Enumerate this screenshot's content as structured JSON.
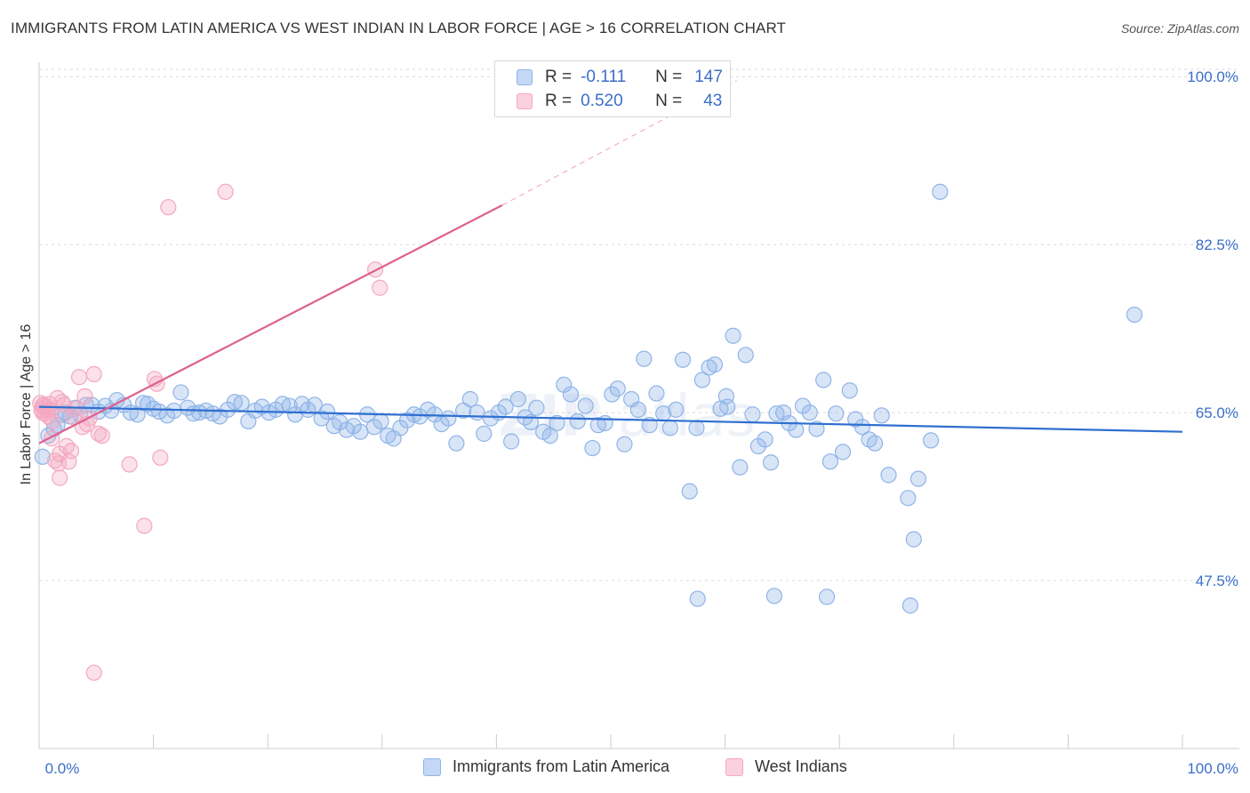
{
  "title": "IMMIGRANTS FROM LATIN AMERICA VS WEST INDIAN IN LABOR FORCE | AGE > 16 CORRELATION CHART",
  "source": "Source: ZipAtlas.com",
  "colors": {
    "blue": "#8fb4e8",
    "blue_line": "#2f6fd0",
    "pink": "#f4a8c0",
    "pink_line": "#e06090",
    "label": "#3b6fc8"
  },
  "legend": {
    "rows": [
      {
        "r_label": "R =",
        "r_value": "-0.111",
        "n_label": "N =",
        "n_value": "147"
      },
      {
        "r_label": "R =",
        "r_value": "0.520",
        "n_label": "N =",
        "n_value": "43"
      }
    ]
  },
  "bottom_legend": [
    {
      "label": "Immigrants from Latin America"
    },
    {
      "label": "West Indians"
    }
  ],
  "chart_data": {
    "type": "scatter",
    "xlabel": "",
    "ylabel": "In Labor Force | Age > 16",
    "xlim": [
      0,
      100
    ],
    "ylim": [
      30,
      101.5
    ],
    "x_tick_labels": [
      "0.0%",
      "100.0%"
    ],
    "y_ticks": [
      47.5,
      65.0,
      82.5,
      100.0
    ],
    "y_tick_labels": [
      "47.5%",
      "65.0%",
      "82.5%",
      "100.0%"
    ],
    "grid": true,
    "legend_position": "top-center",
    "series": [
      {
        "name": "Immigrants from Latin America",
        "color": "#8fb4e8",
        "r": -0.111,
        "n": 147,
        "trend": {
          "x0": 0,
          "y0": 65.6,
          "x1": 100,
          "y1": 63.0
        },
        "points": [
          [
            0.3,
            60.4
          ],
          [
            0.8,
            62.6
          ],
          [
            1.3,
            63.3
          ],
          [
            1.6,
            63.7
          ],
          [
            2.0,
            64.8
          ],
          [
            2.3,
            65.0
          ],
          [
            2.7,
            64.6
          ],
          [
            3.2,
            65.5
          ],
          [
            3.6,
            64.8
          ],
          [
            4.1,
            65.8
          ],
          [
            4.6,
            65.8
          ],
          [
            5.2,
            65.1
          ],
          [
            5.8,
            65.7
          ],
          [
            6.3,
            65.2
          ],
          [
            6.8,
            66.3
          ],
          [
            7.4,
            65.8
          ],
          [
            8.0,
            65.0
          ],
          [
            8.6,
            64.8
          ],
          [
            9.1,
            66.0
          ],
          [
            9.5,
            65.9
          ],
          [
            10.0,
            65.4
          ],
          [
            10.5,
            65.1
          ],
          [
            11.2,
            64.7
          ],
          [
            11.8,
            65.2
          ],
          [
            12.4,
            67.1
          ],
          [
            13.0,
            65.5
          ],
          [
            13.5,
            64.9
          ],
          [
            14.0,
            65.0
          ],
          [
            14.6,
            65.2
          ],
          [
            15.2,
            64.9
          ],
          [
            15.8,
            64.6
          ],
          [
            16.5,
            65.3
          ],
          [
            17.1,
            66.1
          ],
          [
            17.7,
            66.0
          ],
          [
            18.3,
            64.1
          ],
          [
            18.9,
            65.2
          ],
          [
            19.5,
            65.6
          ],
          [
            20.1,
            65.0
          ],
          [
            20.7,
            65.3
          ],
          [
            21.3,
            65.9
          ],
          [
            21.9,
            65.7
          ],
          [
            22.4,
            64.8
          ],
          [
            23.0,
            65.9
          ],
          [
            23.5,
            65.3
          ],
          [
            24.1,
            65.8
          ],
          [
            24.7,
            64.4
          ],
          [
            25.2,
            65.1
          ],
          [
            25.8,
            63.6
          ],
          [
            26.3,
            64.0
          ],
          [
            26.9,
            63.2
          ],
          [
            27.5,
            63.6
          ],
          [
            28.1,
            63.0
          ],
          [
            28.7,
            64.8
          ],
          [
            29.3,
            63.5
          ],
          [
            29.9,
            64.1
          ],
          [
            30.5,
            62.6
          ],
          [
            31.0,
            62.3
          ],
          [
            31.6,
            63.4
          ],
          [
            32.2,
            64.2
          ],
          [
            32.8,
            64.8
          ],
          [
            33.3,
            64.6
          ],
          [
            34.0,
            65.3
          ],
          [
            34.6,
            64.8
          ],
          [
            35.2,
            63.8
          ],
          [
            35.8,
            64.4
          ],
          [
            36.5,
            61.8
          ],
          [
            37.1,
            65.2
          ],
          [
            37.7,
            66.4
          ],
          [
            38.3,
            65.0
          ],
          [
            38.9,
            62.8
          ],
          [
            39.5,
            64.4
          ],
          [
            40.2,
            65.0
          ],
          [
            40.8,
            65.6
          ],
          [
            41.3,
            62.0
          ],
          [
            41.9,
            66.4
          ],
          [
            42.5,
            64.5
          ],
          [
            43.0,
            64.0
          ],
          [
            43.5,
            65.5
          ],
          [
            44.1,
            63.0
          ],
          [
            44.7,
            62.6
          ],
          [
            45.3,
            63.9
          ],
          [
            45.9,
            67.9
          ],
          [
            46.5,
            66.9
          ],
          [
            47.1,
            64.1
          ],
          [
            47.8,
            65.7
          ],
          [
            48.4,
            61.3
          ],
          [
            48.9,
            63.7
          ],
          [
            49.5,
            63.9
          ],
          [
            50.1,
            66.9
          ],
          [
            50.6,
            67.5
          ],
          [
            51.2,
            61.7
          ],
          [
            51.8,
            66.4
          ],
          [
            52.4,
            65.3
          ],
          [
            52.9,
            70.6
          ],
          [
            53.4,
            63.7
          ],
          [
            54.0,
            67.0
          ],
          [
            54.6,
            64.9
          ],
          [
            55.2,
            63.4
          ],
          [
            55.7,
            65.3
          ],
          [
            56.3,
            70.5
          ],
          [
            56.9,
            56.8
          ],
          [
            57.5,
            63.4
          ],
          [
            58.0,
            68.4
          ],
          [
            58.6,
            69.7
          ],
          [
            59.1,
            70.0
          ],
          [
            59.6,
            65.4
          ],
          [
            60.1,
            66.7
          ],
          [
            60.7,
            73.0
          ],
          [
            61.3,
            59.3
          ],
          [
            61.8,
            71.0
          ],
          [
            62.4,
            64.8
          ],
          [
            62.9,
            61.5
          ],
          [
            63.5,
            62.2
          ],
          [
            64.0,
            59.8
          ],
          [
            64.5,
            64.9
          ],
          [
            65.1,
            65.0
          ],
          [
            65.6,
            63.9
          ],
          [
            66.2,
            63.2
          ],
          [
            66.8,
            65.7
          ],
          [
            67.4,
            65.0
          ],
          [
            68.0,
            63.3
          ],
          [
            68.6,
            68.4
          ],
          [
            69.2,
            59.9
          ],
          [
            69.7,
            64.9
          ],
          [
            70.3,
            60.9
          ],
          [
            70.9,
            67.3
          ],
          [
            71.4,
            64.3
          ],
          [
            72.0,
            63.5
          ],
          [
            72.6,
            62.2
          ],
          [
            73.1,
            61.8
          ],
          [
            73.7,
            64.7
          ],
          [
            74.3,
            58.5
          ],
          [
            76.0,
            56.1
          ],
          [
            76.5,
            51.8
          ],
          [
            76.9,
            58.1
          ],
          [
            78.0,
            62.1
          ],
          [
            64.3,
            45.9
          ],
          [
            57.6,
            45.6
          ],
          [
            76.2,
            44.9
          ],
          [
            78.8,
            88.0
          ],
          [
            95.8,
            75.2
          ],
          [
            68.9,
            45.8
          ],
          [
            60.2,
            65.6
          ]
        ]
      },
      {
        "name": "West Indians",
        "color": "#f4a8c0",
        "r": 0.52,
        "n": 43,
        "trend": {
          "x0": 0,
          "y0": 61.8,
          "x1": 40.5,
          "y1": 86.6
        },
        "trend_dashed": {
          "x0": 40.5,
          "y0": 86.6,
          "x1": 61.0,
          "y1": 99.6
        },
        "points": [
          [
            0.1,
            66.0
          ],
          [
            0.2,
            65.3
          ],
          [
            0.3,
            65.0
          ],
          [
            0.4,
            65.8
          ],
          [
            0.5,
            64.9
          ],
          [
            0.6,
            65.6
          ],
          [
            0.7,
            65.2
          ],
          [
            0.8,
            64.6
          ],
          [
            0.9,
            65.9
          ],
          [
            1.0,
            65.3
          ],
          [
            1.1,
            62.3
          ],
          [
            1.2,
            64.1
          ],
          [
            1.4,
            60.0
          ],
          [
            1.6,
            66.5
          ],
          [
            1.7,
            59.7
          ],
          [
            1.8,
            60.7
          ],
          [
            2.0,
            66.1
          ],
          [
            2.2,
            65.8
          ],
          [
            2.4,
            61.5
          ],
          [
            2.6,
            59.9
          ],
          [
            2.8,
            61.0
          ],
          [
            3.0,
            64.5
          ],
          [
            3.2,
            65.4
          ],
          [
            3.5,
            68.7
          ],
          [
            3.8,
            63.5
          ],
          [
            4.0,
            66.7
          ],
          [
            4.2,
            63.8
          ],
          [
            4.4,
            64.4
          ],
          [
            4.8,
            69.0
          ],
          [
            5.2,
            62.8
          ],
          [
            5.5,
            62.6
          ],
          [
            7.9,
            59.6
          ],
          [
            9.2,
            53.2
          ],
          [
            10.1,
            68.5
          ],
          [
            10.3,
            68.0
          ],
          [
            10.6,
            60.3
          ],
          [
            11.3,
            86.4
          ],
          [
            16.3,
            88.0
          ],
          [
            29.4,
            79.9
          ],
          [
            29.8,
            78.0
          ],
          [
            4.8,
            37.9
          ],
          [
            1.8,
            58.2
          ],
          [
            0.3,
            65.7
          ]
        ]
      }
    ]
  }
}
